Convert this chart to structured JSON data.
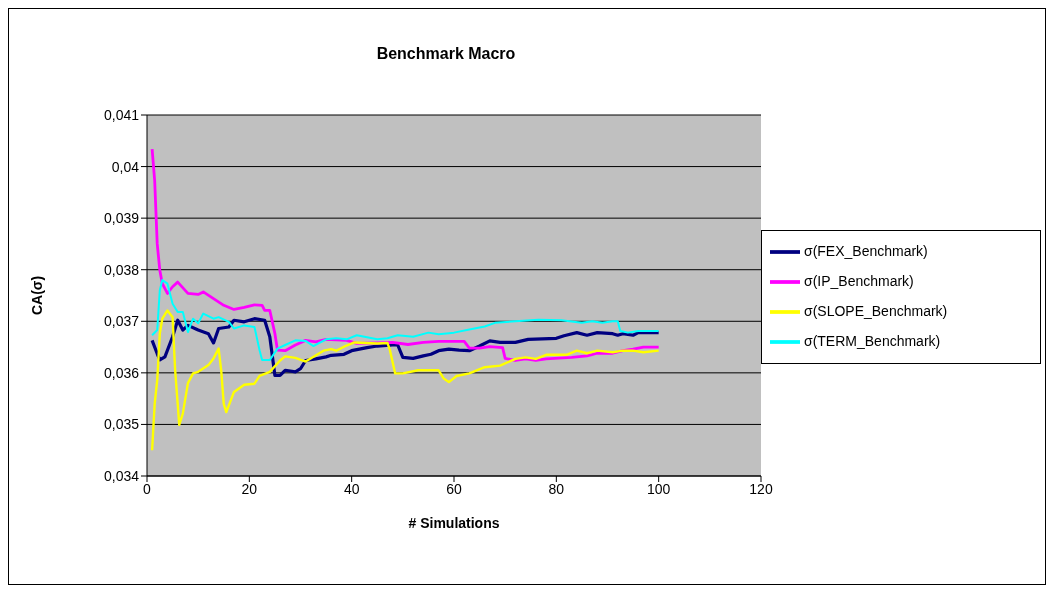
{
  "chart_data": {
    "type": "line",
    "title": "Benchmark Macro",
    "xlabel": "# Simulations",
    "ylabel": "CA(σ)",
    "xlim": [
      0,
      120
    ],
    "xticks": [
      0,
      20,
      40,
      60,
      80,
      100,
      120
    ],
    "ylim": [
      0.034,
      0.041
    ],
    "yticks": [
      {
        "value": 0.034,
        "label": "0,034"
      },
      {
        "value": 0.035,
        "label": "0,035"
      },
      {
        "value": 0.036,
        "label": "0,036"
      },
      {
        "value": 0.037,
        "label": "0,037"
      },
      {
        "value": 0.038,
        "label": "0,038"
      },
      {
        "value": 0.039,
        "label": "0,039"
      },
      {
        "value": 0.04,
        "label": "0,04"
      },
      {
        "value": 0.041,
        "label": "0,041"
      }
    ],
    "grid": "y",
    "legend": "right",
    "marker": "none",
    "line_style": "solid",
    "series": [
      {
        "name": "σ(FEX_Benchmark)",
        "color": "#000080",
        "x": [
          1,
          2,
          2.5,
          3.5,
          5,
          6,
          7,
          8,
          10,
          12,
          13,
          14,
          16,
          17,
          19,
          21,
          23,
          24,
          25,
          26,
          27,
          29,
          30,
          31,
          33,
          35,
          36,
          38.5,
          40,
          43,
          45,
          48,
          49,
          50,
          52,
          54,
          55.5,
          57,
          59,
          61,
          63,
          65,
          67,
          69,
          72,
          74.5,
          80,
          81.5,
          84,
          86,
          88,
          91,
          92,
          93,
          95,
          96,
          100
        ],
        "values": [
          0.03663,
          0.03637,
          0.03625,
          0.03631,
          0.0367,
          0.03702,
          0.03683,
          0.03692,
          0.03683,
          0.03676,
          0.03658,
          0.03686,
          0.03689,
          0.03702,
          0.03699,
          0.03705,
          0.03702,
          0.0367,
          0.03595,
          0.03595,
          0.03605,
          0.03602,
          0.03608,
          0.03624,
          0.03627,
          0.03631,
          0.03634,
          0.03636,
          0.03643,
          0.03649,
          0.03652,
          0.03654,
          0.03654,
          0.0363,
          0.03628,
          0.03633,
          0.03636,
          0.03643,
          0.03646,
          0.03644,
          0.03643,
          0.03652,
          0.03662,
          0.03659,
          0.03659,
          0.03665,
          0.03667,
          0.03672,
          0.03678,
          0.03673,
          0.03678,
          0.03676,
          0.03673,
          0.03676,
          0.03673,
          0.03678,
          0.03678
        ]
      },
      {
        "name": "σ(IP_Benchmark)",
        "color": "#ff00ff",
        "x": [
          1,
          1.5,
          2,
          2.5,
          3,
          4,
          5,
          6,
          8,
          10,
          11,
          13,
          15,
          17,
          19,
          21,
          22.5,
          23,
          24,
          25,
          25.5,
          27,
          29,
          31,
          33,
          35,
          39,
          41,
          45,
          48,
          51,
          54,
          57,
          62,
          63,
          65,
          67,
          69.5,
          70,
          72,
          74,
          76,
          78,
          83,
          86,
          88,
          91,
          93,
          95,
          97,
          100
        ],
        "values": [
          0.04034,
          0.03973,
          0.0385,
          0.03799,
          0.03773,
          0.03754,
          0.03767,
          0.03776,
          0.03754,
          0.03752,
          0.03757,
          0.03744,
          0.03731,
          0.03723,
          0.03727,
          0.03732,
          0.03731,
          0.03721,
          0.03721,
          0.03676,
          0.03644,
          0.03643,
          0.03654,
          0.03663,
          0.0366,
          0.03665,
          0.03663,
          0.03657,
          0.03658,
          0.03659,
          0.03655,
          0.03659,
          0.03661,
          0.03661,
          0.03648,
          0.03648,
          0.03651,
          0.03649,
          0.03628,
          0.03624,
          0.03627,
          0.03624,
          0.03627,
          0.0363,
          0.03633,
          0.03638,
          0.03638,
          0.03643,
          0.03646,
          0.0365,
          0.0365
        ]
      },
      {
        "name": "σ(SLOPE_Benchmark)",
        "color": "#ffff00",
        "x": [
          1,
          1.5,
          2,
          2.5,
          3,
          4,
          5,
          5.5,
          6,
          6.3,
          7,
          8,
          9,
          10,
          12,
          13,
          14,
          14.5,
          15,
          15.5,
          16,
          17,
          19,
          21,
          22,
          24,
          26,
          27,
          29,
          31,
          34.5,
          36,
          37,
          39,
          40.5,
          45,
          47,
          47.5,
          48.5,
          50,
          53,
          57,
          58,
          59,
          60.5,
          63,
          66,
          69,
          72,
          74,
          76,
          78,
          82,
          84,
          86,
          88,
          91,
          93,
          95,
          97,
          100
        ],
        "values": [
          0.0345,
          0.0354,
          0.03586,
          0.03676,
          0.03705,
          0.03721,
          0.03708,
          0.03605,
          0.0354,
          0.03499,
          0.03521,
          0.0358,
          0.03599,
          0.03602,
          0.03615,
          0.03628,
          0.03647,
          0.03605,
          0.0354,
          0.03524,
          0.03537,
          0.03563,
          0.03577,
          0.03579,
          0.03594,
          0.03602,
          0.03624,
          0.03632,
          0.03629,
          0.03622,
          0.03643,
          0.03646,
          0.03643,
          0.03653,
          0.03659,
          0.03657,
          0.03658,
          0.03643,
          0.03599,
          0.03599,
          0.03605,
          0.03605,
          0.03589,
          0.03582,
          0.03594,
          0.03599,
          0.03611,
          0.03614,
          0.03627,
          0.0363,
          0.03627,
          0.03635,
          0.03635,
          0.03643,
          0.03638,
          0.03643,
          0.0364,
          0.03643,
          0.03643,
          0.0364,
          0.03643
        ]
      },
      {
        "name": "σ(TERM_Benchmark)",
        "color": "#00ffff",
        "x": [
          1,
          2,
          2.5,
          3,
          4,
          5,
          6,
          7,
          8,
          9,
          10,
          11,
          13,
          14,
          16,
          17,
          19,
          21,
          22,
          22.5,
          24,
          25.5,
          27,
          29,
          31,
          32.5,
          35,
          37,
          39,
          41,
          45,
          47,
          49,
          52,
          55,
          57,
          60,
          63,
          66,
          68,
          72,
          76.5,
          81,
          85,
          87,
          89,
          91,
          92,
          92.5,
          94,
          96,
          100
        ],
        "values": [
          0.03673,
          0.03683,
          0.0376,
          0.0378,
          0.03773,
          0.03734,
          0.03718,
          0.03718,
          0.03679,
          0.03705,
          0.03696,
          0.03715,
          0.03705,
          0.03708,
          0.03699,
          0.03686,
          0.03692,
          0.03689,
          0.03644,
          0.03625,
          0.03625,
          0.03647,
          0.03654,
          0.03663,
          0.03662,
          0.03652,
          0.03665,
          0.03667,
          0.03665,
          0.03673,
          0.03665,
          0.03667,
          0.03673,
          0.0367,
          0.03678,
          0.03675,
          0.03678,
          0.03684,
          0.0369,
          0.03697,
          0.037,
          0.03703,
          0.03702,
          0.03697,
          0.037,
          0.03697,
          0.037,
          0.037,
          0.03681,
          0.03678,
          0.03681,
          0.03681
        ]
      }
    ]
  }
}
